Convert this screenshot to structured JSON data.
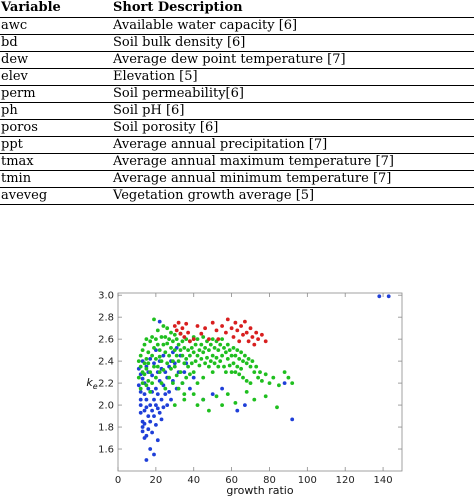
{
  "table": {
    "headers": [
      "Variable",
      "Short Description"
    ],
    "rows": [
      [
        "awc",
        "Available water capacity [6]"
      ],
      [
        "bd",
        "Soil bulk density [6]"
      ],
      [
        "dew",
        "Average dew point temperature [7]"
      ],
      [
        "elev",
        "Elevation [5]"
      ],
      [
        "perm",
        "Soil permeability[6]"
      ],
      [
        "ph",
        "Soil pH [6]"
      ],
      [
        "poros",
        "Soil porosity [6]"
      ],
      [
        "ppt",
        "Average annual precipitation [7]"
      ],
      [
        "tmax",
        "Average annual maximum temperature [7]"
      ],
      [
        "tmin",
        "Average annual minimum temperature [7]"
      ],
      [
        "aveveg",
        "Vegetation growth average [5]"
      ]
    ]
  },
  "chart_data": {
    "type": "scatter",
    "xlabel": "growth ratio",
    "ylabel": "k_e",
    "xlim": [
      0,
      150
    ],
    "ylim": [
      1.4,
      3.02
    ],
    "xticks": [
      "0",
      "20",
      "40",
      "60",
      "80",
      "100",
      "120",
      "140"
    ],
    "yticks": [
      "1.6",
      "1.8",
      "2.0",
      "2.2",
      "2.4",
      "2.6",
      "2.8",
      "3.0"
    ],
    "grid": false,
    "colors": {
      "blue": "#1f3fd8",
      "green": "#1fbf1f",
      "red": "#d81f1f",
      "frame": "#8a8a8a"
    },
    "series": [
      {
        "color": "blue",
        "points": [
          [
            11,
            2.33
          ],
          [
            11,
            2.18
          ],
          [
            12,
            2.28
          ],
          [
            12,
            2.05
          ],
          [
            12,
            2.0
          ],
          [
            12,
            1.93
          ],
          [
            12,
            2.12
          ],
          [
            13,
            1.85
          ],
          [
            13,
            1.8
          ],
          [
            13,
            2.24
          ],
          [
            13,
            2.4
          ],
          [
            13,
            1.76
          ],
          [
            14,
            1.95
          ],
          [
            14,
            2.1
          ],
          [
            14,
            1.7
          ],
          [
            14,
            2.2
          ],
          [
            14,
            1.83
          ],
          [
            15,
            1.98
          ],
          [
            15,
            2.35
          ],
          [
            15,
            1.72
          ],
          [
            15,
            1.5
          ],
          [
            15,
            2.05
          ],
          [
            16,
            1.9
          ],
          [
            16,
            2.15
          ],
          [
            16,
            1.78
          ],
          [
            16,
            2.3
          ],
          [
            17,
            2.0
          ],
          [
            17,
            1.85
          ],
          [
            17,
            2.42
          ],
          [
            17,
            1.6
          ],
          [
            18,
            2.12
          ],
          [
            18,
            1.95
          ],
          [
            18,
            2.27
          ],
          [
            18,
            1.75
          ],
          [
            19,
            2.05
          ],
          [
            19,
            1.9
          ],
          [
            19,
            2.38
          ],
          [
            19,
            1.55
          ],
          [
            20,
            2.0
          ],
          [
            20,
            2.15
          ],
          [
            20,
            1.82
          ],
          [
            20,
            2.5
          ],
          [
            21,
            2.1
          ],
          [
            21,
            1.97
          ],
          [
            21,
            2.3
          ],
          [
            21,
            1.68
          ],
          [
            22,
            2.22
          ],
          [
            22,
            1.93
          ],
          [
            22,
            2.4
          ],
          [
            22,
            2.76
          ],
          [
            23,
            2.05
          ],
          [
            23,
            1.87
          ],
          [
            23,
            2.33
          ],
          [
            24,
            2.18
          ],
          [
            24,
            2.45
          ],
          [
            24,
            1.98
          ],
          [
            25,
            2.1
          ],
          [
            25,
            2.3
          ],
          [
            26,
            2.25
          ],
          [
            26,
            2.0
          ],
          [
            27,
            2.35
          ],
          [
            27,
            2.12
          ],
          [
            28,
            2.4
          ],
          [
            28,
            2.05
          ],
          [
            29,
            2.48
          ],
          [
            29,
            2.22
          ],
          [
            30,
            2.38
          ],
          [
            31,
            2.52
          ],
          [
            31,
            2.15
          ],
          [
            32,
            2.3
          ],
          [
            33,
            2.45
          ],
          [
            34,
            2.2
          ],
          [
            35,
            2.3
          ],
          [
            36,
            2.38
          ],
          [
            38,
            2.15
          ],
          [
            40,
            2.25
          ],
          [
            45,
            2.05
          ],
          [
            50,
            2.1
          ],
          [
            55,
            2.15
          ],
          [
            63,
            1.95
          ],
          [
            67,
            2.0
          ],
          [
            88,
            2.2
          ],
          [
            92,
            1.87
          ],
          [
            138,
            2.99
          ],
          [
            143,
            2.99
          ]
        ]
      },
      {
        "color": "green",
        "points": [
          [
            11,
            2.25
          ],
          [
            11,
            2.4
          ],
          [
            12,
            2.15
          ],
          [
            12,
            2.35
          ],
          [
            12,
            2.45
          ],
          [
            13,
            2.3
          ],
          [
            13,
            2.2
          ],
          [
            13,
            2.5
          ],
          [
            14,
            2.38
          ],
          [
            14,
            2.28
          ],
          [
            14,
            2.55
          ],
          [
            15,
            2.42
          ],
          [
            15,
            2.18
          ],
          [
            15,
            2.6
          ],
          [
            15,
            2.33
          ],
          [
            16,
            2.48
          ],
          [
            16,
            2.22
          ],
          [
            16,
            2.38
          ],
          [
            17,
            2.58
          ],
          [
            17,
            2.3
          ],
          [
            17,
            2.12
          ],
          [
            18,
            2.45
          ],
          [
            18,
            2.62
          ],
          [
            18,
            2.2
          ],
          [
            19,
            2.52
          ],
          [
            19,
            2.35
          ],
          [
            19,
            2.78
          ],
          [
            20,
            2.42
          ],
          [
            20,
            2.6
          ],
          [
            20,
            2.25
          ],
          [
            21,
            2.55
          ],
          [
            21,
            2.35
          ],
          [
            21,
            2.68
          ],
          [
            22,
            2.5
          ],
          [
            22,
            2.3
          ],
          [
            22,
            2.44
          ],
          [
            23,
            2.62
          ],
          [
            23,
            2.4
          ],
          [
            23,
            2.2
          ],
          [
            24,
            2.55
          ],
          [
            24,
            2.72
          ],
          [
            24,
            2.32
          ],
          [
            25,
            2.48
          ],
          [
            25,
            2.62
          ],
          [
            25,
            2.15
          ],
          [
            26,
            2.56
          ],
          [
            26,
            2.38
          ],
          [
            26,
            2.7
          ],
          [
            27,
            2.45
          ],
          [
            27,
            2.6
          ],
          [
            27,
            2.25
          ],
          [
            28,
            2.52
          ],
          [
            28,
            2.66
          ],
          [
            28,
            2.33
          ],
          [
            29,
            2.58
          ],
          [
            29,
            2.4
          ],
          [
            29,
            2.2
          ],
          [
            30,
            2.5
          ],
          [
            30,
            2.64
          ],
          [
            30,
            2.35
          ],
          [
            31,
            2.45
          ],
          [
            31,
            2.6
          ],
          [
            31,
            2.27
          ],
          [
            32,
            2.55
          ],
          [
            32,
            2.4
          ],
          [
            32,
            2.15
          ],
          [
            33,
            2.5
          ],
          [
            33,
            2.65
          ],
          [
            33,
            2.3
          ],
          [
            34,
            2.45
          ],
          [
            34,
            2.58
          ],
          [
            34,
            2.2
          ],
          [
            35,
            2.52
          ],
          [
            35,
            2.38
          ],
          [
            35,
            2.1
          ],
          [
            36,
            2.6
          ],
          [
            36,
            2.42
          ],
          [
            36,
            2.25
          ],
          [
            37,
            2.5
          ],
          [
            37,
            2.35
          ],
          [
            38,
            2.45
          ],
          [
            38,
            2.58
          ],
          [
            38,
            2.28
          ],
          [
            39,
            2.52
          ],
          [
            39,
            2.38
          ],
          [
            40,
            2.48
          ],
          [
            40,
            2.62
          ],
          [
            40,
            2.3
          ],
          [
            41,
            2.55
          ],
          [
            41,
            2.4
          ],
          [
            42,
            2.6
          ],
          [
            42,
            2.45
          ],
          [
            42,
            2.2
          ],
          [
            43,
            2.5
          ],
          [
            43,
            2.36
          ],
          [
            44,
            2.55
          ],
          [
            44,
            2.42
          ],
          [
            45,
            2.62
          ],
          [
            45,
            2.48
          ],
          [
            45,
            2.25
          ],
          [
            46,
            2.52
          ],
          [
            46,
            2.38
          ],
          [
            47,
            2.58
          ],
          [
            47,
            2.43
          ],
          [
            48,
            2.5
          ],
          [
            48,
            2.35
          ],
          [
            49,
            2.55
          ],
          [
            49,
            2.4
          ],
          [
            50,
            2.6
          ],
          [
            50,
            2.45
          ],
          [
            50,
            2.3
          ],
          [
            51,
            2.52
          ],
          [
            51,
            2.38
          ],
          [
            52,
            2.58
          ],
          [
            52,
            2.43
          ],
          [
            53,
            2.5
          ],
          [
            53,
            2.35
          ],
          [
            54,
            2.55
          ],
          [
            54,
            2.4
          ],
          [
            55,
            2.6
          ],
          [
            55,
            2.45
          ],
          [
            56,
            2.52
          ],
          [
            56,
            2.35
          ],
          [
            57,
            2.48
          ],
          [
            57,
            2.3
          ],
          [
            58,
            2.55
          ],
          [
            58,
            2.42
          ],
          [
            59,
            2.5
          ],
          [
            59,
            2.36
          ],
          [
            60,
            2.45
          ],
          [
            60,
            2.3
          ],
          [
            61,
            2.52
          ],
          [
            61,
            2.38
          ],
          [
            62,
            2.45
          ],
          [
            62,
            2.3
          ],
          [
            63,
            2.5
          ],
          [
            63,
            2.35
          ],
          [
            64,
            2.42
          ],
          [
            64,
            2.28
          ],
          [
            65,
            2.48
          ],
          [
            65,
            2.33
          ],
          [
            66,
            2.4
          ],
          [
            66,
            2.25
          ],
          [
            67,
            2.45
          ],
          [
            68,
            2.38
          ],
          [
            68,
            2.22
          ],
          [
            69,
            2.42
          ],
          [
            70,
            2.35
          ],
          [
            70,
            2.2
          ],
          [
            71,
            2.4
          ],
          [
            72,
            2.3
          ],
          [
            73,
            2.35
          ],
          [
            74,
            2.25
          ],
          [
            75,
            2.3
          ],
          [
            76,
            2.22
          ],
          [
            78,
            2.28
          ],
          [
            80,
            2.2
          ],
          [
            82,
            2.25
          ],
          [
            85,
            2.18
          ],
          [
            88,
            2.3
          ],
          [
            90,
            2.25
          ],
          [
            92,
            2.2
          ],
          [
            40,
            2.1
          ],
          [
            42,
            2.0
          ],
          [
            45,
            2.05
          ],
          [
            48,
            1.95
          ],
          [
            52,
            2.08
          ],
          [
            55,
            2.0
          ],
          [
            58,
            2.1
          ],
          [
            62,
            2.02
          ],
          [
            68,
            2.12
          ],
          [
            72,
            2.05
          ],
          [
            78,
            2.08
          ],
          [
            84,
            1.98
          ],
          [
            35,
            2.05
          ],
          [
            30,
            2.0
          ]
        ]
      },
      {
        "color": "red",
        "points": [
          [
            30,
            2.72
          ],
          [
            31,
            2.68
          ],
          [
            32,
            2.75
          ],
          [
            33,
            2.65
          ],
          [
            34,
            2.7
          ],
          [
            35,
            2.62
          ],
          [
            36,
            2.74
          ],
          [
            37,
            2.66
          ],
          [
            38,
            2.58
          ],
          [
            40,
            2.6
          ],
          [
            42,
            2.72
          ],
          [
            44,
            2.65
          ],
          [
            46,
            2.7
          ],
          [
            48,
            2.6
          ],
          [
            50,
            2.75
          ],
          [
            52,
            2.68
          ],
          [
            53,
            2.6
          ],
          [
            55,
            2.72
          ],
          [
            57,
            2.66
          ],
          [
            58,
            2.78
          ],
          [
            60,
            2.7
          ],
          [
            61,
            2.62
          ],
          [
            62,
            2.75
          ],
          [
            63,
            2.68
          ],
          [
            64,
            2.58
          ],
          [
            65,
            2.72
          ],
          [
            66,
            2.64
          ],
          [
            67,
            2.76
          ],
          [
            68,
            2.66
          ],
          [
            69,
            2.58
          ],
          [
            70,
            2.7
          ],
          [
            71,
            2.62
          ],
          [
            72,
            2.55
          ],
          [
            73,
            2.66
          ],
          [
            74,
            2.6
          ],
          [
            76,
            2.64
          ],
          [
            78,
            2.58
          ]
        ]
      }
    ]
  }
}
